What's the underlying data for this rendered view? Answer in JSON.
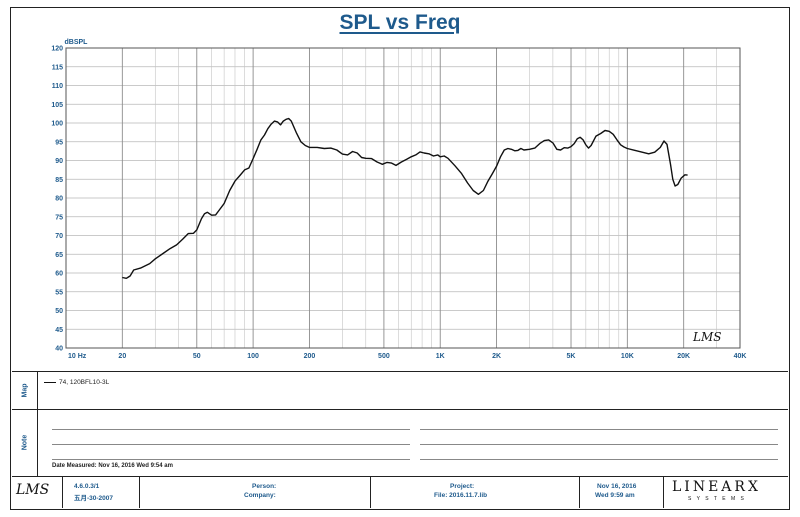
{
  "chart_data": {
    "type": "line",
    "title": "SPL vs Freq",
    "ylabel": "dBSPL",
    "xscale": "log",
    "xlim": [
      10,
      40000
    ],
    "ylim": [
      40,
      120
    ],
    "yticks": [
      40,
      45,
      50,
      55,
      60,
      65,
      70,
      75,
      80,
      85,
      90,
      95,
      100,
      105,
      110,
      115,
      120
    ],
    "xticks": [
      {
        "value": 10,
        "label": "10  Hz"
      },
      {
        "value": 20,
        "label": "20"
      },
      {
        "value": 50,
        "label": "50"
      },
      {
        "value": 100,
        "label": "100"
      },
      {
        "value": 200,
        "label": "200"
      },
      {
        "value": 500,
        "label": "500"
      },
      {
        "value": 1000,
        "label": "1K"
      },
      {
        "value": 2000,
        "label": "2K"
      },
      {
        "value": 5000,
        "label": "5K"
      },
      {
        "value": 10000,
        "label": "10K"
      },
      {
        "value": 20000,
        "label": "20K"
      },
      {
        "value": 40000,
        "label": "40K"
      }
    ],
    "grid": true,
    "watermark": "LMS",
    "series": [
      {
        "name": "74, 120BFL10-3L",
        "color": "#111111",
        "points": [
          [
            20,
            58.8
          ],
          [
            21,
            58.6
          ],
          [
            22,
            59.2
          ],
          [
            23,
            60.8
          ],
          [
            25,
            61.3
          ],
          [
            28,
            62.5
          ],
          [
            30,
            63.8
          ],
          [
            33,
            65.2
          ],
          [
            36,
            66.5
          ],
          [
            39,
            67.5
          ],
          [
            42,
            69
          ],
          [
            45,
            70.5
          ],
          [
            48,
            70.6
          ],
          [
            50,
            71.5
          ],
          [
            53,
            74.5
          ],
          [
            55,
            75.8
          ],
          [
            57,
            76.2
          ],
          [
            60,
            75.4
          ],
          [
            63,
            75.5
          ],
          [
            66,
            76.8
          ],
          [
            70,
            78.5
          ],
          [
            75,
            82
          ],
          [
            80,
            84.5
          ],
          [
            85,
            86
          ],
          [
            90,
            87.5
          ],
          [
            95,
            88
          ],
          [
            100,
            90.5
          ],
          [
            105,
            93
          ],
          [
            110,
            95.5
          ],
          [
            115,
            96.8
          ],
          [
            120,
            98.5
          ],
          [
            125,
            99.7
          ],
          [
            130,
            100.5
          ],
          [
            135,
            100.3
          ],
          [
            140,
            99.5
          ],
          [
            145,
            100.5
          ],
          [
            150,
            101
          ],
          [
            155,
            101.2
          ],
          [
            160,
            100.5
          ],
          [
            170,
            97.5
          ],
          [
            180,
            95
          ],
          [
            190,
            94
          ],
          [
            200,
            93.5
          ],
          [
            220,
            93.5
          ],
          [
            240,
            93.2
          ],
          [
            260,
            93.3
          ],
          [
            280,
            92.8
          ],
          [
            300,
            91.7
          ],
          [
            320,
            91.5
          ],
          [
            340,
            92.4
          ],
          [
            360,
            92
          ],
          [
            380,
            90.8
          ],
          [
            400,
            90.6
          ],
          [
            430,
            90.5
          ],
          [
            460,
            89.6
          ],
          [
            490,
            89
          ],
          [
            520,
            89.5
          ],
          [
            550,
            89.3
          ],
          [
            580,
            88.7
          ],
          [
            620,
            89.6
          ],
          [
            660,
            90.3
          ],
          [
            700,
            91
          ],
          [
            740,
            91.5
          ],
          [
            780,
            92.3
          ],
          [
            820,
            92
          ],
          [
            870,
            91.8
          ],
          [
            920,
            91.2
          ],
          [
            970,
            91.5
          ],
          [
            1000,
            91
          ],
          [
            1050,
            91.2
          ],
          [
            1100,
            90.6
          ],
          [
            1200,
            88.6
          ],
          [
            1300,
            86.5
          ],
          [
            1400,
            84
          ],
          [
            1500,
            82
          ],
          [
            1600,
            81
          ],
          [
            1700,
            82
          ],
          [
            1800,
            84.5
          ],
          [
            1900,
            86.5
          ],
          [
            2000,
            88.5
          ],
          [
            2100,
            91
          ],
          [
            2200,
            92.8
          ],
          [
            2300,
            93.2
          ],
          [
            2400,
            93
          ],
          [
            2500,
            92.6
          ],
          [
            2600,
            92.7
          ],
          [
            2700,
            93.2
          ],
          [
            2800,
            92.8
          ],
          [
            3000,
            93
          ],
          [
            3200,
            93.3
          ],
          [
            3400,
            94.5
          ],
          [
            3600,
            95.3
          ],
          [
            3800,
            95.5
          ],
          [
            4000,
            94.7
          ],
          [
            4200,
            93
          ],
          [
            4400,
            92.8
          ],
          [
            4600,
            93.4
          ],
          [
            4800,
            93.3
          ],
          [
            5000,
            93.7
          ],
          [
            5200,
            94.5
          ],
          [
            5400,
            95.8
          ],
          [
            5600,
            96.2
          ],
          [
            5800,
            95.5
          ],
          [
            6000,
            94.2
          ],
          [
            6200,
            93.3
          ],
          [
            6400,
            94
          ],
          [
            6800,
            96.5
          ],
          [
            7200,
            97.2
          ],
          [
            7600,
            98
          ],
          [
            8000,
            97.8
          ],
          [
            8400,
            97
          ],
          [
            8800,
            95.5
          ],
          [
            9200,
            94.2
          ],
          [
            9600,
            93.6
          ],
          [
            10000,
            93.2
          ],
          [
            11000,
            92.7
          ],
          [
            12000,
            92.2
          ],
          [
            13000,
            91.8
          ],
          [
            14000,
            92.2
          ],
          [
            15000,
            93.5
          ],
          [
            15700,
            95.2
          ],
          [
            16300,
            94.3
          ],
          [
            17000,
            89
          ],
          [
            17500,
            85
          ],
          [
            18000,
            83.2
          ],
          [
            18600,
            83.6
          ],
          [
            19400,
            85.3
          ],
          [
            20300,
            86.2
          ],
          [
            21000,
            86.1
          ]
        ]
      }
    ]
  },
  "map_panel": {
    "label": "Map",
    "entry": "74, 120BFL10-3L"
  },
  "note_panel": {
    "label": "Note",
    "date_measured": "Date Measured: Nov 16, 2016   Wed   9:54 am"
  },
  "footer": {
    "version": "4.6.0.3/1",
    "version_sub": "五月-30-2007",
    "person_label": "Person:",
    "company_label": "Company:",
    "project_label": "Project:",
    "file_label": "File: 2016.11.7.lib",
    "date": "Nov 16, 2016",
    "time": "Wed   9:59 am",
    "brand": "LINEARX",
    "brand_sub": "S Y S T E M S",
    "logo": "LMS"
  }
}
